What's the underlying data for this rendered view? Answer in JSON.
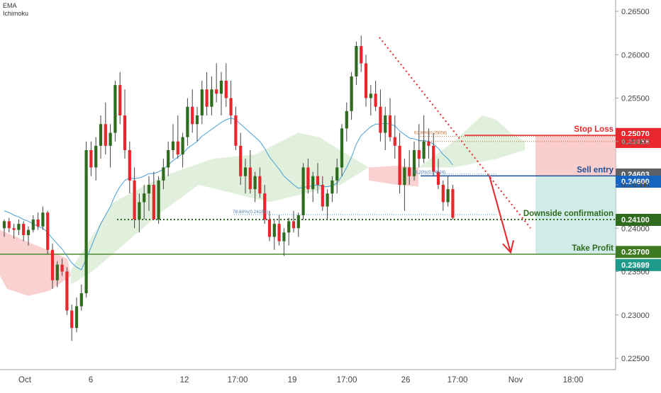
{
  "indicators": [
    "EMA",
    "Ichimoku"
  ],
  "chart_data": {
    "type": "candlestick",
    "price_axis": {
      "range": [
        0.2225,
        0.2675
      ],
      "ticks": [
        "0.26500",
        "0.26000",
        "0.25500",
        "0.25000",
        "0.24500",
        "0.24000",
        "0.23500",
        "0.23000",
        "0.22500"
      ]
    },
    "time_axis": {
      "labels": [
        "Oct",
        "6",
        "12",
        "17:00",
        "19",
        "17:00",
        "26",
        "17:00",
        "Nov",
        "18:00"
      ]
    },
    "candles": [
      [
        0.24,
        0.241,
        0.239,
        0.2408
      ],
      [
        0.2408,
        0.2412,
        0.2395,
        0.24
      ],
      [
        0.24,
        0.2405,
        0.2388,
        0.2398
      ],
      [
        0.2398,
        0.241,
        0.2392,
        0.2405
      ],
      [
        0.2405,
        0.2408,
        0.2385,
        0.2392
      ],
      [
        0.2392,
        0.2402,
        0.238,
        0.2398
      ],
      [
        0.2398,
        0.2415,
        0.2395,
        0.241
      ],
      [
        0.241,
        0.2418,
        0.2398,
        0.2402
      ],
      [
        0.2402,
        0.2425,
        0.2398,
        0.2418
      ],
      [
        0.2418,
        0.242,
        0.237,
        0.2375
      ],
      [
        0.2375,
        0.2382,
        0.233,
        0.234
      ],
      [
        0.234,
        0.2362,
        0.2332,
        0.2358
      ],
      [
        0.2358,
        0.2365,
        0.2345,
        0.235
      ],
      [
        0.235,
        0.2355,
        0.23,
        0.2305
      ],
      [
        0.2305,
        0.2312,
        0.227,
        0.2285
      ],
      [
        0.2285,
        0.232,
        0.228,
        0.231
      ],
      [
        0.231,
        0.2335,
        0.2305,
        0.2325
      ],
      [
        0.2325,
        0.25,
        0.232,
        0.249
      ],
      [
        0.249,
        0.25,
        0.246,
        0.247
      ],
      [
        0.247,
        0.2505,
        0.2455,
        0.2495
      ],
      [
        0.2495,
        0.253,
        0.248,
        0.252
      ],
      [
        0.252,
        0.2545,
        0.2485,
        0.2495
      ],
      [
        0.2495,
        0.252,
        0.247,
        0.251
      ],
      [
        0.251,
        0.257,
        0.25,
        0.2565
      ],
      [
        0.2565,
        0.258,
        0.252,
        0.253
      ],
      [
        0.253,
        0.256,
        0.248,
        0.249
      ],
      [
        0.249,
        0.25,
        0.244,
        0.2455
      ],
      [
        0.2455,
        0.247,
        0.24,
        0.241
      ],
      [
        0.241,
        0.244,
        0.2395,
        0.243
      ],
      [
        0.243,
        0.245,
        0.241,
        0.244
      ],
      [
        0.244,
        0.246,
        0.242,
        0.245
      ],
      [
        0.245,
        0.2465,
        0.241,
        0.241
      ],
      [
        0.241,
        0.246,
        0.2405,
        0.2455
      ],
      [
        0.2455,
        0.248,
        0.2445,
        0.247
      ],
      [
        0.247,
        0.25,
        0.246,
        0.249
      ],
      [
        0.249,
        0.252,
        0.248,
        0.25
      ],
      [
        0.25,
        0.253,
        0.248,
        0.2485
      ],
      [
        0.2485,
        0.251,
        0.247,
        0.2505
      ],
      [
        0.2505,
        0.255,
        0.2495,
        0.254
      ],
      [
        0.254,
        0.256,
        0.251,
        0.252
      ],
      [
        0.252,
        0.254,
        0.25,
        0.253
      ],
      [
        0.253,
        0.257,
        0.252,
        0.256
      ],
      [
        0.256,
        0.258,
        0.253,
        0.254
      ],
      [
        0.254,
        0.2575,
        0.253,
        0.256
      ],
      [
        0.256,
        0.259,
        0.2545,
        0.2555
      ],
      [
        0.2555,
        0.258,
        0.253,
        0.257
      ],
      [
        0.257,
        0.259,
        0.254,
        0.255
      ],
      [
        0.255,
        0.257,
        0.252,
        0.253
      ],
      [
        0.253,
        0.254,
        0.249,
        0.2495
      ],
      [
        0.2495,
        0.251,
        0.245,
        0.246
      ],
      [
        0.246,
        0.248,
        0.244,
        0.247
      ],
      [
        0.247,
        0.249,
        0.244,
        0.2445
      ],
      [
        0.2445,
        0.2465,
        0.243,
        0.246
      ],
      [
        0.246,
        0.247,
        0.2435,
        0.244
      ],
      [
        0.244,
        0.245,
        0.2405,
        0.241
      ],
      [
        0.241,
        0.242,
        0.2385,
        0.239
      ],
      [
        0.239,
        0.241,
        0.2375,
        0.2405
      ],
      [
        0.2405,
        0.2415,
        0.238,
        0.2385
      ],
      [
        0.2385,
        0.24,
        0.2368,
        0.2395
      ],
      [
        0.2395,
        0.2412,
        0.238,
        0.2408
      ],
      [
        0.2408,
        0.242,
        0.2395,
        0.24
      ],
      [
        0.24,
        0.2418,
        0.239,
        0.2415
      ],
      [
        0.2415,
        0.2475,
        0.241,
        0.247
      ],
      [
        0.247,
        0.248,
        0.244,
        0.2445
      ],
      [
        0.2445,
        0.2465,
        0.243,
        0.246
      ],
      [
        0.246,
        0.2475,
        0.244,
        0.245
      ],
      [
        0.245,
        0.246,
        0.242,
        0.2425
      ],
      [
        0.2425,
        0.2445,
        0.241,
        0.244
      ],
      [
        0.244,
        0.246,
        0.243,
        0.2455
      ],
      [
        0.2455,
        0.248,
        0.244,
        0.247
      ],
      [
        0.247,
        0.252,
        0.246,
        0.2515
      ],
      [
        0.2515,
        0.2545,
        0.25,
        0.2535
      ],
      [
        0.2535,
        0.258,
        0.2525,
        0.2575
      ],
      [
        0.2575,
        0.2615,
        0.2565,
        0.261
      ],
      [
        0.261,
        0.2622,
        0.258,
        0.259
      ],
      [
        0.259,
        0.26,
        0.254,
        0.255
      ],
      [
        0.255,
        0.2565,
        0.253,
        0.2555
      ],
      [
        0.2555,
        0.257,
        0.2535,
        0.254
      ],
      [
        0.254,
        0.256,
        0.25,
        0.251
      ],
      [
        0.251,
        0.254,
        0.249,
        0.253
      ],
      [
        0.253,
        0.255,
        0.25,
        0.2505
      ],
      [
        0.2505,
        0.253,
        0.248,
        0.2495
      ],
      [
        0.2495,
        0.251,
        0.244,
        0.245
      ],
      [
        0.245,
        0.248,
        0.242,
        0.247
      ],
      [
        0.247,
        0.249,
        0.245,
        0.246
      ],
      [
        0.246,
        0.25,
        0.2455,
        0.249
      ],
      [
        0.249,
        0.252,
        0.247,
        0.248
      ],
      [
        0.248,
        0.253,
        0.2475,
        0.25
      ],
      [
        0.25,
        0.2515,
        0.248,
        0.2495
      ],
      [
        0.2495,
        0.251,
        0.246,
        0.2465
      ],
      [
        0.2465,
        0.248,
        0.2445,
        0.245
      ],
      [
        0.245,
        0.2455,
        0.242,
        0.243
      ],
      [
        0.243,
        0.246,
        0.2425,
        0.2445
      ],
      [
        0.2445,
        0.245,
        0.241,
        0.2412
      ]
    ],
    "ema_line": [
      0.242,
      0.2418,
      0.2415,
      0.2413,
      0.241,
      0.2408,
      0.2405,
      0.2402,
      0.24,
      0.2395,
      0.2388,
      0.2382,
      0.2376,
      0.2368,
      0.236,
      0.2355,
      0.2352,
      0.2365,
      0.2378,
      0.2392,
      0.2405,
      0.2415,
      0.2425,
      0.2438,
      0.2448,
      0.2455,
      0.2458,
      0.2457,
      0.2458,
      0.246,
      0.2463,
      0.2463,
      0.2465,
      0.2468,
      0.2473,
      0.2478,
      0.2482,
      0.2486,
      0.2492,
      0.2496,
      0.25,
      0.2506,
      0.251,
      0.2514,
      0.2518,
      0.2522,
      0.2525,
      0.2527,
      0.2525,
      0.252,
      0.2515,
      0.251,
      0.2505,
      0.25,
      0.2492,
      0.2482,
      0.2475,
      0.2468,
      0.246,
      0.2455,
      0.245,
      0.2446,
      0.2447,
      0.2448,
      0.2449,
      0.245,
      0.2448,
      0.2448,
      0.2449,
      0.2452,
      0.246,
      0.247,
      0.2482,
      0.2497,
      0.2507,
      0.2512,
      0.2517,
      0.252,
      0.252,
      0.2521,
      0.252,
      0.2518,
      0.2512,
      0.2508,
      0.2504,
      0.2503,
      0.2501,
      0.2501,
      0.25,
      0.2497,
      0.2492,
      0.2485,
      0.248,
      0.2473
    ],
    "horizontal_levels": [
      {
        "name": "Stop Loss",
        "price": 0.2507,
        "label": "0.25070",
        "color": "#e8262b"
      },
      {
        "name": "Sell entry",
        "price": 0.24603,
        "label": "0.24603",
        "color": "#1b4f9a"
      },
      {
        "name": "Downside confirmation",
        "price": 0.241,
        "label": "0.24100",
        "color": "#2e6b1e"
      },
      {
        "name": "Take Profit",
        "price": 0.237,
        "label": "0.23700",
        "color": "#4c8a2d"
      }
    ],
    "extra_price_labels": [
      {
        "text": "0.25058",
        "price": 0.25058,
        "color": "#e8262b"
      },
      {
        "text": "0.24600",
        "price": 0.246,
        "color": "#1565c0"
      },
      {
        "text": "0.23699",
        "price": 0.23699,
        "color": "#1e9a8a"
      }
    ],
    "fib_annotations": [
      "78.60%(0.24156)",
      "61.80%(0.25058)",
      "38.20%(0.24624)"
    ],
    "colors": {
      "up": "#2e6b1e",
      "down": "#e8262b",
      "ema": "#4a9fd8",
      "cloud_red": "#f7c6c6",
      "cloud_green": "#d9ecd3",
      "loss_zone": "#f9c5c5",
      "profit_zone": "#c8e8e4"
    }
  }
}
